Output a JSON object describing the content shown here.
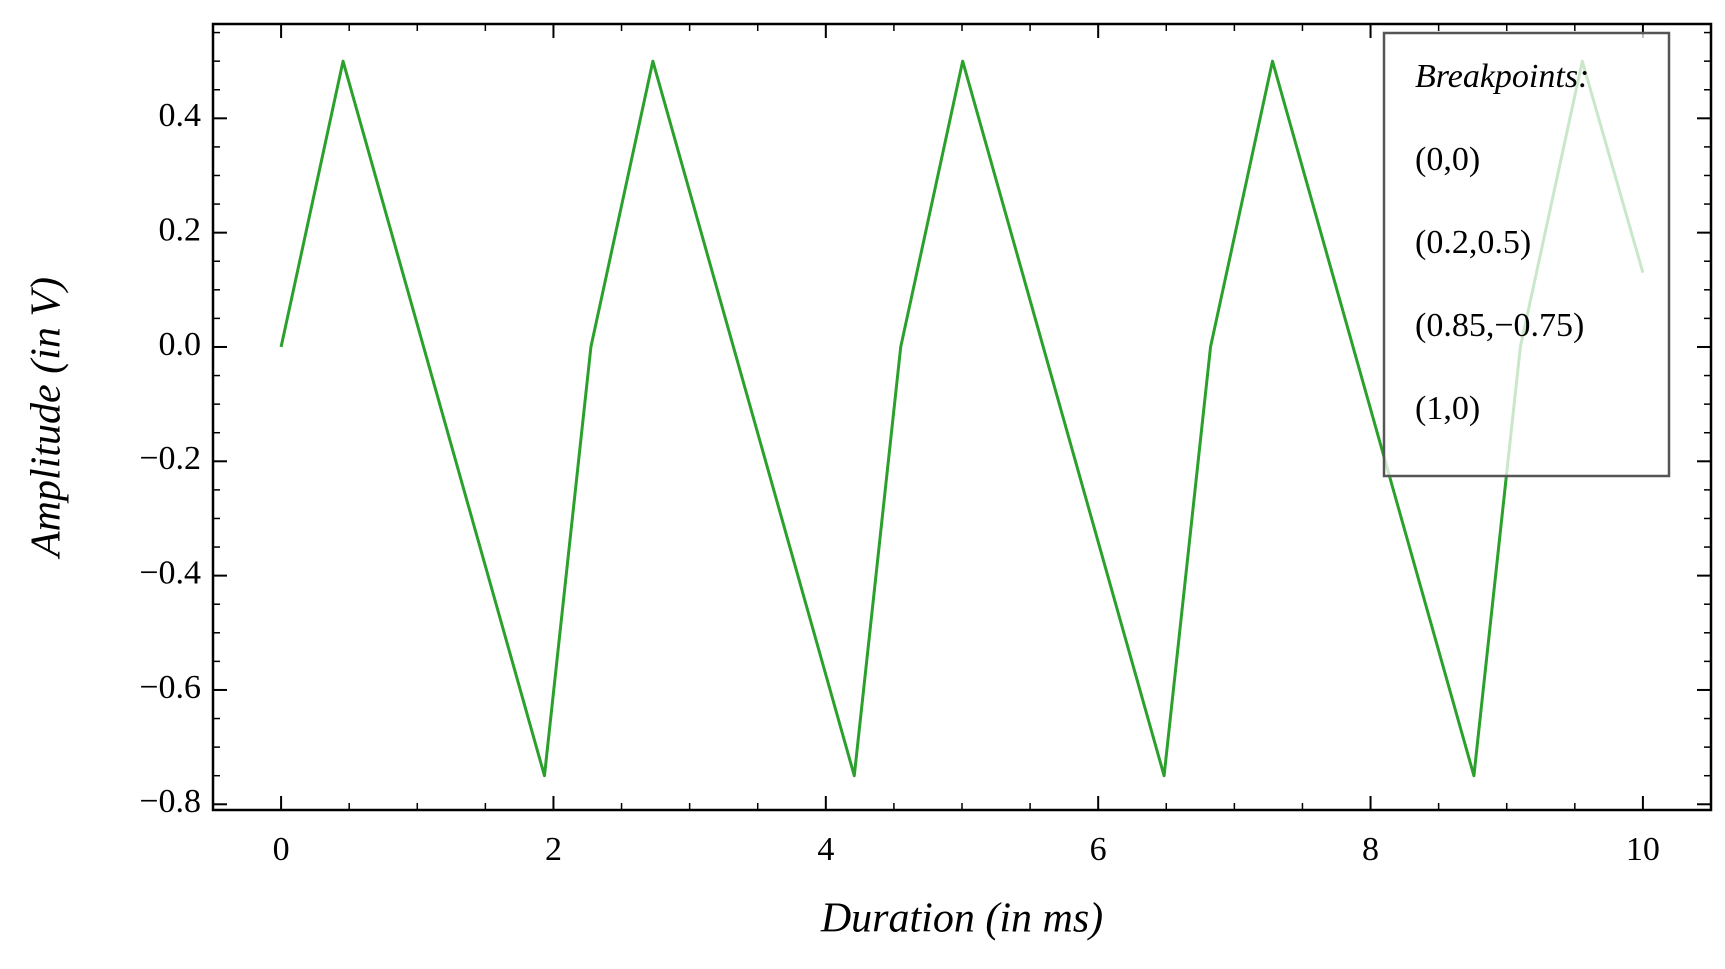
{
  "chart_data": {
    "type": "line",
    "xlabel": "Duration (in ms)",
    "ylabel": "Amplitude (in V)",
    "series": [
      {
        "color": "#2ca02c",
        "x": [
          0,
          0.455,
          1.934,
          2.275,
          2.73,
          4.209,
          4.55,
          5.005,
          6.484,
          6.825,
          7.28,
          8.759,
          9.1,
          9.555,
          10
        ],
        "values": [
          0,
          0.5,
          -0.75,
          0,
          0.5,
          -0.75,
          0,
          0.5,
          -0.75,
          0,
          0.5,
          -0.75,
          0,
          0.5,
          0.13
        ]
      }
    ],
    "xlim": [
      -0.5,
      10.5
    ],
    "ylim": [
      -0.81,
      0.565
    ],
    "xticks": [
      0,
      2,
      4,
      6,
      8,
      10
    ],
    "yticks": [
      {
        "value": -0.8,
        "label": "−0.8"
      },
      {
        "value": -0.6,
        "label": "−0.6"
      },
      {
        "value": -0.4,
        "label": "−0.4"
      },
      {
        "value": -0.2,
        "label": "−0.2"
      },
      {
        "value": 0,
        "label": "0.0"
      },
      {
        "value": 0.2,
        "label": "0.2"
      },
      {
        "value": 0.4,
        "label": "0.4"
      }
    ],
    "xminorticks": [
      -0.5,
      0.5,
      1,
      1.5,
      2.5,
      3,
      3.5,
      4.5,
      5,
      5.5,
      6.5,
      7,
      7.5,
      8.5,
      9,
      9.5,
      10.5
    ],
    "yminorticks": [
      -0.75,
      -0.7,
      -0.65,
      -0.55,
      -0.5,
      -0.45,
      -0.35,
      -0.3,
      -0.25,
      -0.15,
      -0.1,
      -0.05,
      0.05,
      0.1,
      0.15,
      0.25,
      0.3,
      0.35,
      0.45,
      0.5,
      0.55
    ],
    "legend_loc": "upper right",
    "legend": [
      "Breakpoints:",
      "(0,0)",
      "(0.2,0.5)",
      "(0.85,−0.75)",
      "(1,0)"
    ]
  }
}
